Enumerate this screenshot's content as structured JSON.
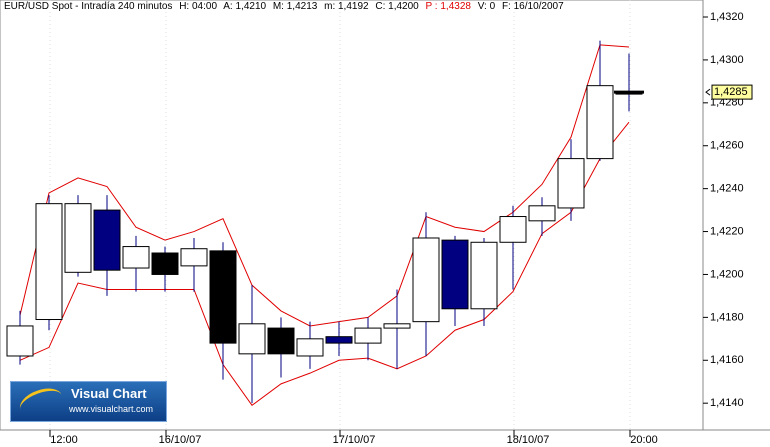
{
  "chart_data": {
    "type": "candlestick",
    "header": [
      "EUR/USD Spot - Intradía 240 minutos",
      "H: 04:00",
      "A: 1,4210",
      "M: 1,4213",
      "m: 1,4192",
      "C: 1,4200",
      "P : 1,4328",
      "V: 0",
      "F: 16/10/2007"
    ],
    "categories": [
      null,
      "12:00",
      null,
      null,
      null,
      "16/10/07",
      null,
      null,
      null,
      null,
      null,
      "17/10/07",
      null,
      null,
      null,
      null,
      null,
      "18/10/07",
      null,
      null,
      null,
      "20:00"
    ],
    "open": [
      1.4162,
      1.4179,
      1.4201,
      1.423,
      1.4203,
      1.421,
      1.4204,
      1.4211,
      1.4163,
      1.4175,
      1.4162,
      1.4171,
      1.4168,
      1.4175,
      1.4178,
      1.4216,
      1.4184,
      1.4215,
      1.4225,
      1.4231,
      1.4254,
      1.4285
    ],
    "high": [
      1.4183,
      1.4237,
      1.4237,
      1.4237,
      1.4218,
      1.4213,
      1.4217,
      1.4215,
      1.4195,
      1.418,
      1.4178,
      1.4178,
      1.418,
      1.4193,
      1.4229,
      1.4218,
      1.4217,
      1.4232,
      1.4236,
      1.4263,
      1.4309,
      1.4303
    ],
    "low": [
      1.4158,
      1.4174,
      1.4199,
      1.419,
      1.4192,
      1.4192,
      1.4192,
      1.4151,
      1.414,
      1.4152,
      1.4156,
      1.4162,
      1.416,
      1.4156,
      1.4162,
      1.4176,
      1.4176,
      1.4193,
      1.4218,
      1.4225,
      1.4253,
      1.4276
    ],
    "close": [
      1.4176,
      1.4233,
      1.4233,
      1.4202,
      1.4213,
      1.42,
      1.4212,
      1.4168,
      1.4177,
      1.4163,
      1.417,
      1.4168,
      1.4175,
      1.4177,
      1.4217,
      1.4184,
      1.4215,
      1.4227,
      1.4232,
      1.4254,
      1.4288,
      1.4285
    ],
    "fills": [
      "#ffffff",
      "#ffffff",
      "#ffffff",
      "#000080",
      "#ffffff",
      "#000000",
      "#ffffff",
      "#000000",
      "#ffffff",
      "#000000",
      "#ffffff",
      "#000080",
      "#ffffff",
      "#ffffff",
      "#ffffff",
      "#000080",
      "#ffffff",
      "#ffffff",
      "#ffffff",
      "#ffffff",
      "#ffffff",
      "#000000"
    ],
    "wick_color": "#000080",
    "bands": [
      {
        "color": "#e00000",
        "values": [
          1.4181,
          1.4238,
          1.4245,
          1.4241,
          1.4222,
          1.4216,
          1.422,
          1.4226,
          1.4195,
          1.4183,
          1.4176,
          1.4178,
          1.418,
          1.419,
          1.4227,
          1.4222,
          1.422,
          1.4229,
          1.4242,
          1.4264,
          1.4307,
          1.4306
        ]
      },
      {
        "color": "#e00000",
        "values": [
          1.416,
          1.4166,
          1.4196,
          1.4193,
          1.4193,
          1.4193,
          1.4193,
          1.4158,
          1.4139,
          1.4149,
          1.4154,
          1.416,
          1.4161,
          1.4156,
          1.4162,
          1.4174,
          1.4179,
          1.4192,
          1.4219,
          1.4229,
          1.4254,
          1.4271
        ]
      }
    ],
    "ylim": [
      1.41275,
      1.43242
    ],
    "yticks": [
      {
        "value": 1.414,
        "label": "1,4140"
      },
      {
        "value": 1.416,
        "label": "1,4160"
      },
      {
        "value": 1.418,
        "label": "1,4180"
      },
      {
        "value": 1.42,
        "label": "1,4200"
      },
      {
        "value": 1.422,
        "label": "1,4220"
      },
      {
        "value": 1.424,
        "label": "1,4240"
      },
      {
        "value": 1.426,
        "label": "1,4260"
      },
      {
        "value": 1.428,
        "label": "1,4280"
      },
      {
        "value": 1.43,
        "label": "1,4300"
      },
      {
        "value": 1.432,
        "label": "1,4320"
      }
    ],
    "last_price": {
      "value": 1.4285,
      "label": "1,4285"
    }
  },
  "logo": {
    "title": "Visual Chart",
    "url": "www.visualchart.com"
  }
}
